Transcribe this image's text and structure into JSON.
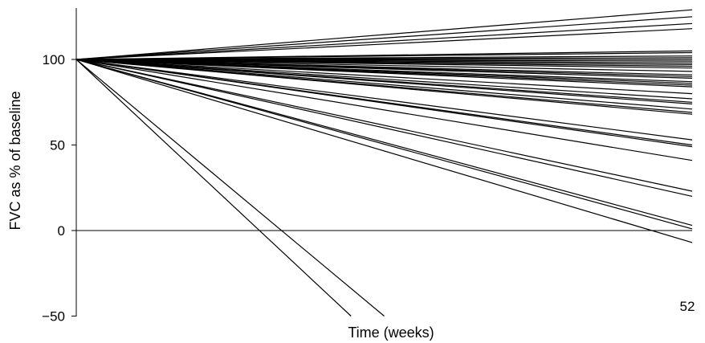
{
  "chart_data": {
    "type": "line",
    "title": "",
    "xlabel": "Time (weeks)",
    "ylabel": "FVC as % of baseline",
    "x_tick_labels": [
      {
        "value": 52,
        "label": "52"
      }
    ],
    "y_tick_labels": [
      {
        "value": 100,
        "label": "100"
      },
      {
        "value": 50,
        "label": "50"
      },
      {
        "value": 0,
        "label": "0"
      },
      {
        "value": -50,
        "label": "−50"
      }
    ],
    "xlim": [
      0,
      52
    ],
    "ylim": [
      -50,
      130
    ],
    "reference_line_y": 0,
    "grid": false,
    "legend": "none",
    "line_color": "#000000",
    "series": [
      {
        "x": [
          0,
          52
        ],
        "y": [
          100,
          129
        ]
      },
      {
        "x": [
          0,
          52
        ],
        "y": [
          100,
          125
        ]
      },
      {
        "x": [
          0,
          52
        ],
        "y": [
          100,
          121
        ]
      },
      {
        "x": [
          0,
          52
        ],
        "y": [
          100,
          118
        ]
      },
      {
        "x": [
          0,
          52
        ],
        "y": [
          100,
          105
        ]
      },
      {
        "x": [
          0,
          52
        ],
        "y": [
          100,
          104
        ]
      },
      {
        "x": [
          0,
          52
        ],
        "y": [
          100,
          102
        ]
      },
      {
        "x": [
          0,
          52
        ],
        "y": [
          100,
          101
        ]
      },
      {
        "x": [
          0,
          52
        ],
        "y": [
          100,
          100
        ]
      },
      {
        "x": [
          0,
          52
        ],
        "y": [
          100,
          99
        ]
      },
      {
        "x": [
          0,
          52
        ],
        "y": [
          100,
          98
        ]
      },
      {
        "x": [
          0,
          52
        ],
        "y": [
          100,
          97
        ]
      },
      {
        "x": [
          0,
          52
        ],
        "y": [
          100,
          96
        ]
      },
      {
        "x": [
          0,
          52
        ],
        "y": [
          100,
          95
        ]
      },
      {
        "x": [
          0,
          52
        ],
        "y": [
          100,
          93
        ]
      },
      {
        "x": [
          0,
          52
        ],
        "y": [
          100,
          91
        ]
      },
      {
        "x": [
          0,
          52
        ],
        "y": [
          100,
          90
        ]
      },
      {
        "x": [
          0,
          52
        ],
        "y": [
          100,
          89
        ]
      },
      {
        "x": [
          0,
          52
        ],
        "y": [
          100,
          87
        ]
      },
      {
        "x": [
          0,
          52
        ],
        "y": [
          100,
          86
        ]
      },
      {
        "x": [
          0,
          52
        ],
        "y": [
          100,
          85
        ]
      },
      {
        "x": [
          0,
          52
        ],
        "y": [
          100,
          84
        ]
      },
      {
        "x": [
          0,
          52
        ],
        "y": [
          100,
          80
        ]
      },
      {
        "x": [
          0,
          52
        ],
        "y": [
          100,
          77
        ]
      },
      {
        "x": [
          0,
          52
        ],
        "y": [
          100,
          75
        ]
      },
      {
        "x": [
          0,
          52
        ],
        "y": [
          100,
          74
        ]
      },
      {
        "x": [
          0,
          52
        ],
        "y": [
          100,
          71
        ]
      },
      {
        "x": [
          0,
          52
        ],
        "y": [
          100,
          69
        ]
      },
      {
        "x": [
          0,
          52
        ],
        "y": [
          100,
          68
        ]
      },
      {
        "x": [
          0,
          52
        ],
        "y": [
          100,
          53
        ]
      },
      {
        "x": [
          0,
          52
        ],
        "y": [
          100,
          50
        ]
      },
      {
        "x": [
          0,
          52
        ],
        "y": [
          100,
          49
        ]
      },
      {
        "x": [
          0,
          52
        ],
        "y": [
          100,
          41
        ]
      },
      {
        "x": [
          0,
          52
        ],
        "y": [
          100,
          23
        ]
      },
      {
        "x": [
          0,
          52
        ],
        "y": [
          100,
          20
        ]
      },
      {
        "x": [
          0,
          52
        ],
        "y": [
          100,
          3
        ]
      },
      {
        "x": [
          0,
          52
        ],
        "y": [
          100,
          1
        ]
      },
      {
        "x": [
          0,
          52
        ],
        "y": [
          100,
          -7
        ]
      },
      {
        "x": [
          0,
          26
        ],
        "y": [
          100,
          -50
        ]
      },
      {
        "x": [
          0,
          23.2
        ],
        "y": [
          100,
          -50
        ]
      }
    ]
  }
}
